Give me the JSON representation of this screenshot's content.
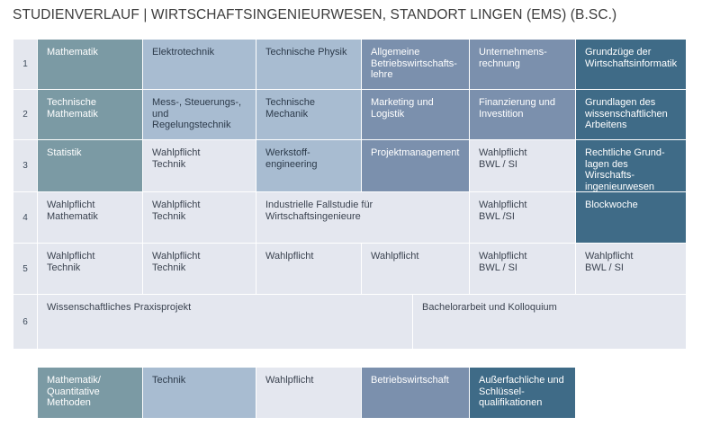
{
  "title": "STUDIENVERLAUF | WIRTSCHAFTSINGENIEURWESEN, STANDORT LINGEN (EMS) (B.SC.)",
  "rows": [
    "1",
    "2",
    "3",
    "4",
    "5",
    "6"
  ],
  "cells": {
    "r1c1": "Mathematik",
    "r1c2": "Elektrotechnik",
    "r1c3": "Technische Physik",
    "r1c4": "Allgemeine\nBetriebswirtschafts-\nlehre",
    "r1c5": "Unternehmens-\nrechnung",
    "r1c6": "Grundzüge der\nWirtschaftsinformatik",
    "r2c1": "Technische\nMathematik",
    "r2c2": "Mess-, Steuerungs-,\nund Regelungstechnik",
    "r2c3": "Technische\nMechanik",
    "r2c4": "Marketing und\nLogistik",
    "r2c5": "Finanzierung und\nInvestition",
    "r2c6": "Grundlagen des\nwissenschaftlichen\nArbeitens",
    "r3c1": "Statistik",
    "r3c2": "Wahlpflicht\nTechnik",
    "r3c3": "Werkstoff-\nengineering",
    "r3c4": "Projektmanagement",
    "r3c5": "Wahlpflicht\nBWL / SI",
    "r3c6": "Rechtliche Grund-\nlagen des Wirschafts-\ningenieurwesen",
    "r4c1": "Wahlpflicht\nMathematik",
    "r4c2": "Wahlpflicht\nTechnik",
    "r4c34": "Industrielle Fallstudie für Wirtschaftsingenieure",
    "r4c5": "Wahlpflicht\nBWL /SI",
    "r4c6": "Blockwoche",
    "r5c1": "Wahlpflicht\nTechnik",
    "r5c2": "Wahlpflicht\nTechnik",
    "r5c3": "Wahlpflicht",
    "r5c4": "Wahlpflicht",
    "r5c5": "Wahlpflicht\nBWL / SI",
    "r5c6": "Wahlpflicht\nBWL / SI",
    "r6a": "Wissenschaftliches Praxisprojekt",
    "r6b": "Bachelorarbeit und Kolloquium"
  },
  "legend": {
    "math": "Mathematik/\nQuantitative\nMethoden",
    "tech": "Technik",
    "wahl": "Wahlpflicht",
    "bwl": "Betriebswirtschaft",
    "qual": "Außerfachliche und\nSchlüssel-\nqualifikationen"
  },
  "colors": {
    "math": "#7b9aa4",
    "tech": "#a8bcd1",
    "wahl": "#e4e7ef",
    "bwl": "#7b90ad",
    "qual": "#3f6b87"
  }
}
